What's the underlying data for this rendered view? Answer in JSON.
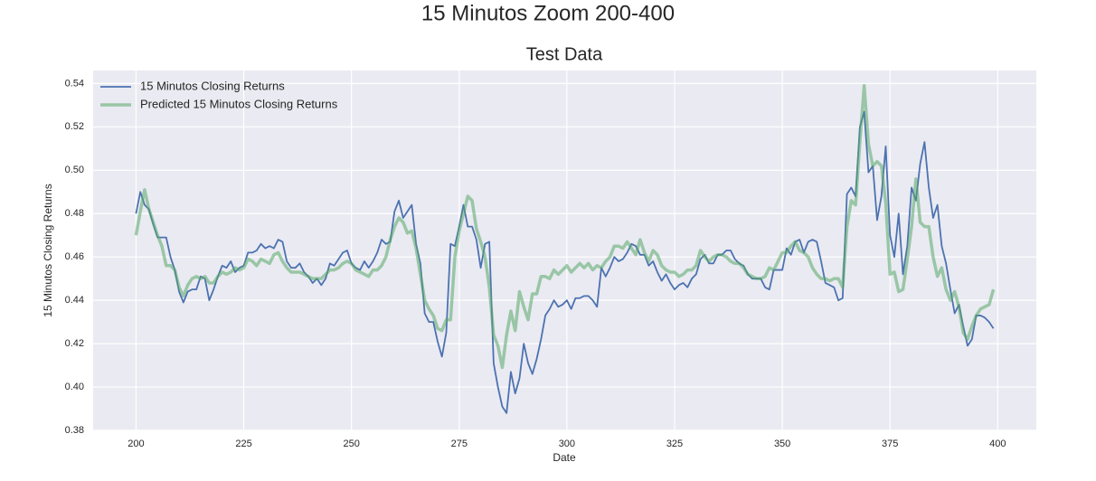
{
  "chart_data": {
    "type": "line",
    "suptitle": "15 Minutos Zoom 200-400",
    "title": "Test Data",
    "xlabel": "Date",
    "ylabel": "15 Minutos Closing Returns",
    "x": [
      200,
      201,
      202,
      203,
      204,
      205,
      206,
      207,
      208,
      209,
      210,
      211,
      212,
      213,
      214,
      215,
      216,
      217,
      218,
      219,
      220,
      221,
      222,
      223,
      224,
      225,
      226,
      227,
      228,
      229,
      230,
      231,
      232,
      233,
      234,
      235,
      236,
      237,
      238,
      239,
      240,
      241,
      242,
      243,
      244,
      245,
      246,
      247,
      248,
      249,
      250,
      251,
      252,
      253,
      254,
      255,
      256,
      257,
      258,
      259,
      260,
      261,
      262,
      263,
      264,
      265,
      266,
      267,
      268,
      269,
      270,
      271,
      272,
      273,
      274,
      275,
      276,
      277,
      278,
      279,
      280,
      281,
      282,
      283,
      284,
      285,
      286,
      287,
      288,
      289,
      290,
      291,
      292,
      293,
      294,
      295,
      296,
      297,
      298,
      299,
      300,
      301,
      302,
      303,
      304,
      305,
      306,
      307,
      308,
      309,
      310,
      311,
      312,
      313,
      314,
      315,
      316,
      317,
      318,
      319,
      320,
      321,
      322,
      323,
      324,
      325,
      326,
      327,
      328,
      329,
      330,
      331,
      332,
      333,
      334,
      335,
      336,
      337,
      338,
      339,
      340,
      341,
      342,
      343,
      344,
      345,
      346,
      347,
      348,
      349,
      350,
      351,
      352,
      353,
      354,
      355,
      356,
      357,
      358,
      359,
      360,
      361,
      362,
      363,
      364,
      365,
      366,
      367,
      368,
      369,
      370,
      371,
      372,
      373,
      374,
      375,
      376,
      377,
      378,
      379,
      380,
      381,
      382,
      383,
      384,
      385,
      386,
      387,
      388,
      389,
      390,
      391,
      392,
      393,
      394,
      395,
      396,
      397,
      398,
      399
    ],
    "series": [
      {
        "name": "15 Minutos Closing Returns",
        "color": "#4c72b0",
        "width": 1.8,
        "opacity": 1,
        "values": [
          0.48,
          0.49,
          0.484,
          0.482,
          0.475,
          0.469,
          0.469,
          0.469,
          0.46,
          0.454,
          0.444,
          0.439,
          0.444,
          0.445,
          0.445,
          0.451,
          0.45,
          0.44,
          0.445,
          0.451,
          0.456,
          0.455,
          0.458,
          0.453,
          0.455,
          0.456,
          0.462,
          0.462,
          0.463,
          0.466,
          0.464,
          0.465,
          0.464,
          0.468,
          0.467,
          0.458,
          0.455,
          0.455,
          0.457,
          0.453,
          0.451,
          0.448,
          0.45,
          0.447,
          0.45,
          0.457,
          0.456,
          0.459,
          0.462,
          0.463,
          0.457,
          0.455,
          0.454,
          0.458,
          0.455,
          0.458,
          0.462,
          0.468,
          0.466,
          0.467,
          0.481,
          0.486,
          0.478,
          0.481,
          0.484,
          0.466,
          0.457,
          0.434,
          0.43,
          0.43,
          0.421,
          0.414,
          0.425,
          0.466,
          0.465,
          0.474,
          0.484,
          0.474,
          0.474,
          0.468,
          0.455,
          0.466,
          0.467,
          0.411,
          0.4,
          0.391,
          0.388,
          0.407,
          0.397,
          0.404,
          0.42,
          0.411,
          0.406,
          0.413,
          0.422,
          0.433,
          0.436,
          0.44,
          0.437,
          0.438,
          0.44,
          0.436,
          0.441,
          0.441,
          0.442,
          0.442,
          0.44,
          0.437,
          0.455,
          0.451,
          0.455,
          0.46,
          0.458,
          0.459,
          0.462,
          0.466,
          0.465,
          0.461,
          0.461,
          0.456,
          0.458,
          0.453,
          0.449,
          0.452,
          0.448,
          0.445,
          0.447,
          0.448,
          0.446,
          0.45,
          0.452,
          0.459,
          0.461,
          0.457,
          0.457,
          0.461,
          0.461,
          0.463,
          0.463,
          0.459,
          0.457,
          0.456,
          0.452,
          0.45,
          0.45,
          0.45,
          0.446,
          0.445,
          0.454,
          0.454,
          0.454,
          0.464,
          0.461,
          0.467,
          0.468,
          0.462,
          0.467,
          0.468,
          0.467,
          0.458,
          0.448,
          0.447,
          0.446,
          0.44,
          0.441,
          0.489,
          0.492,
          0.488,
          0.52,
          0.527,
          0.499,
          0.502,
          0.477,
          0.488,
          0.511,
          0.47,
          0.46,
          0.48,
          0.452,
          0.465,
          0.492,
          0.486,
          0.503,
          0.513,
          0.492,
          0.478,
          0.484,
          0.465,
          0.457,
          0.445,
          0.434,
          0.438,
          0.428,
          0.419,
          0.422,
          0.433,
          0.433,
          0.432,
          0.43,
          0.427
        ]
      },
      {
        "name": "Predicted 15 Minutos Closing Returns",
        "color": "#55a868",
        "width": 3.5,
        "opacity": 0.55,
        "values": [
          0.47,
          0.481,
          0.491,
          0.482,
          0.476,
          0.47,
          0.465,
          0.456,
          0.456,
          0.454,
          0.446,
          0.442,
          0.447,
          0.45,
          0.451,
          0.45,
          0.451,
          0.448,
          0.448,
          0.451,
          0.453,
          0.452,
          0.453,
          0.455,
          0.454,
          0.455,
          0.459,
          0.458,
          0.456,
          0.459,
          0.458,
          0.457,
          0.461,
          0.462,
          0.458,
          0.455,
          0.453,
          0.453,
          0.453,
          0.452,
          0.451,
          0.45,
          0.45,
          0.45,
          0.452,
          0.454,
          0.454,
          0.455,
          0.457,
          0.458,
          0.457,
          0.454,
          0.453,
          0.452,
          0.451,
          0.454,
          0.454,
          0.456,
          0.46,
          0.468,
          0.474,
          0.478,
          0.476,
          0.471,
          0.472,
          0.464,
          0.452,
          0.44,
          0.436,
          0.433,
          0.427,
          0.426,
          0.431,
          0.431,
          0.46,
          0.472,
          0.48,
          0.488,
          0.486,
          0.473,
          0.467,
          0.46,
          0.446,
          0.424,
          0.419,
          0.409,
          0.424,
          0.435,
          0.426,
          0.444,
          0.437,
          0.431,
          0.443,
          0.443,
          0.451,
          0.451,
          0.45,
          0.454,
          0.452,
          0.454,
          0.456,
          0.453,
          0.455,
          0.457,
          0.455,
          0.457,
          0.454,
          0.456,
          0.455,
          0.458,
          0.46,
          0.465,
          0.465,
          0.464,
          0.467,
          0.464,
          0.461,
          0.468,
          0.462,
          0.458,
          0.463,
          0.461,
          0.456,
          0.454,
          0.453,
          0.453,
          0.451,
          0.452,
          0.454,
          0.454,
          0.456,
          0.463,
          0.46,
          0.458,
          0.46,
          0.461,
          0.461,
          0.46,
          0.458,
          0.457,
          0.457,
          0.455,
          0.452,
          0.451,
          0.45,
          0.45,
          0.451,
          0.455,
          0.454,
          0.458,
          0.462,
          0.462,
          0.465,
          0.467,
          0.463,
          0.462,
          0.46,
          0.455,
          0.452,
          0.45,
          0.45,
          0.449,
          0.45,
          0.45,
          0.446,
          0.474,
          0.486,
          0.484,
          0.513,
          0.539,
          0.512,
          0.502,
          0.504,
          0.502,
          0.485,
          0.452,
          0.453,
          0.444,
          0.445,
          0.459,
          0.474,
          0.496,
          0.476,
          0.474,
          0.474,
          0.46,
          0.451,
          0.455,
          0.445,
          0.44,
          0.444,
          0.437,
          0.425,
          0.422,
          0.428,
          0.433,
          0.436,
          0.437,
          0.438,
          0.445
        ]
      }
    ],
    "xlim": [
      190.05,
      408.95
    ],
    "ylim": [
      0.38,
      0.546
    ],
    "xticks": [
      200,
      225,
      250,
      275,
      300,
      325,
      350,
      375,
      400
    ],
    "yticks": [
      {
        "value": 0.38,
        "label": "0.38"
      },
      {
        "value": 0.4,
        "label": "0.40"
      },
      {
        "value": 0.42,
        "label": "0.42"
      },
      {
        "value": 0.44,
        "label": "0.44"
      },
      {
        "value": 0.46,
        "label": "0.46"
      },
      {
        "value": 0.48,
        "label": "0.48"
      },
      {
        "value": 0.5,
        "label": "0.50"
      },
      {
        "value": 0.52,
        "label": "0.52"
      },
      {
        "value": 0.54,
        "label": "0.54"
      }
    ],
    "grid": true,
    "legend": "upper-left",
    "background": "#eaeaf2"
  }
}
